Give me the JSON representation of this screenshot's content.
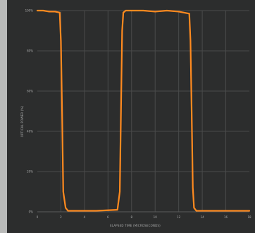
{
  "chart_data": {
    "type": "line",
    "xlabel": "ELAPSED TIME (MICROSECONDS)",
    "ylabel": "OPTICAL POWER (%)",
    "xlim": [
      0,
      18
    ],
    "ylim": [
      0,
      100
    ],
    "x_ticks": [
      "0",
      "2",
      "4",
      "6",
      "8",
      "10",
      "12",
      "14",
      "16",
      "18"
    ],
    "y_ticks": [
      "0%",
      "20%",
      "40%",
      "60%",
      "80%",
      "100%"
    ],
    "grid": true,
    "line_color": "#ff8a1f",
    "series": [
      {
        "x": [
          0.0,
          0.5,
          1.0,
          1.5,
          1.9,
          2.0,
          2.1,
          2.2,
          2.4,
          2.6,
          3.0,
          4.0,
          5.0,
          6.0,
          6.8,
          7.0,
          7.1,
          7.2,
          7.3,
          7.5,
          8.0,
          9.0,
          10.0,
          11.0,
          12.0,
          12.9,
          13.0,
          13.1,
          13.2,
          13.3,
          13.5,
          14.0,
          15.0,
          16.0,
          17.0,
          18.0
        ],
        "y": [
          100,
          100,
          99.5,
          99.5,
          99,
          85,
          50,
          10,
          2,
          0.5,
          0.5,
          0.5,
          0.5,
          0.8,
          1,
          10,
          50,
          90,
          99,
          100,
          100,
          100,
          99.5,
          100,
          99.5,
          98.5,
          85,
          50,
          12,
          2,
          0.5,
          0.5,
          0.5,
          0.5,
          0.5,
          0.5
        ]
      }
    ]
  }
}
